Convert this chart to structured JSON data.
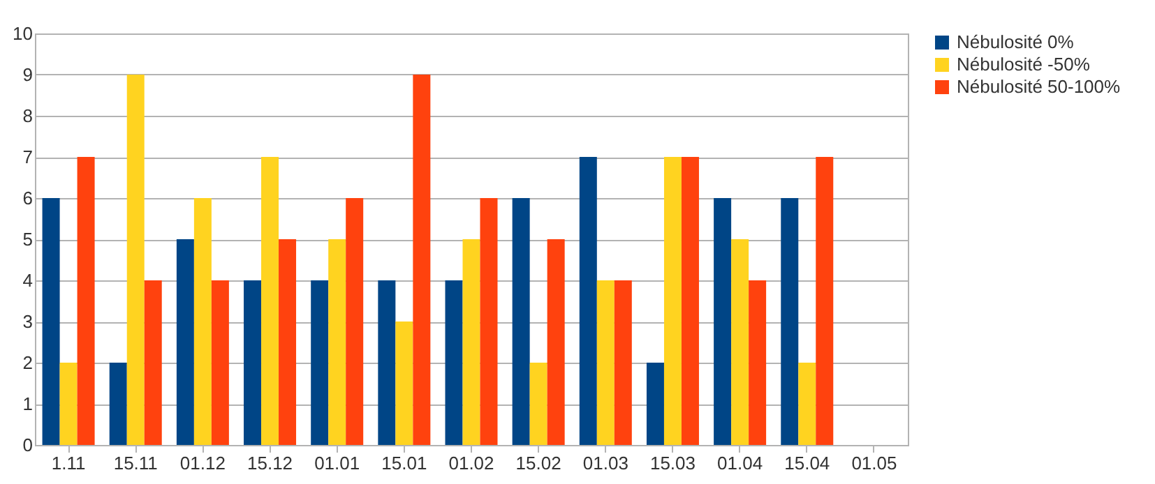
{
  "chart_data": {
    "type": "bar",
    "categories": [
      "1.11",
      "15.11",
      "01.12",
      "15.12",
      "01.01",
      "15.01",
      "01.02",
      "15.02",
      "01.03",
      "15.03",
      "01.04",
      "15.04",
      "01.05"
    ],
    "series": [
      {
        "name": "Nébulosité 0%",
        "color": "#004586",
        "values": [
          6,
          2,
          5,
          4,
          4,
          4,
          4,
          6,
          7,
          2,
          6,
          6,
          null
        ]
      },
      {
        "name": "Nébulosité -50%",
        "color": "#ffd320",
        "values": [
          2,
          9,
          6,
          7,
          5,
          3,
          5,
          2,
          4,
          7,
          5,
          2,
          null
        ]
      },
      {
        "name": "Nébulosité 50-100%",
        "color": "#ff420e",
        "values": [
          7,
          4,
          4,
          5,
          6,
          9,
          6,
          5,
          4,
          7,
          4,
          7,
          null
        ]
      }
    ],
    "ylim": [
      0,
      10
    ],
    "yticks": [
      0,
      1,
      2,
      3,
      4,
      5,
      6,
      7,
      8,
      9,
      10
    ],
    "grid": "y",
    "legend": "right"
  }
}
